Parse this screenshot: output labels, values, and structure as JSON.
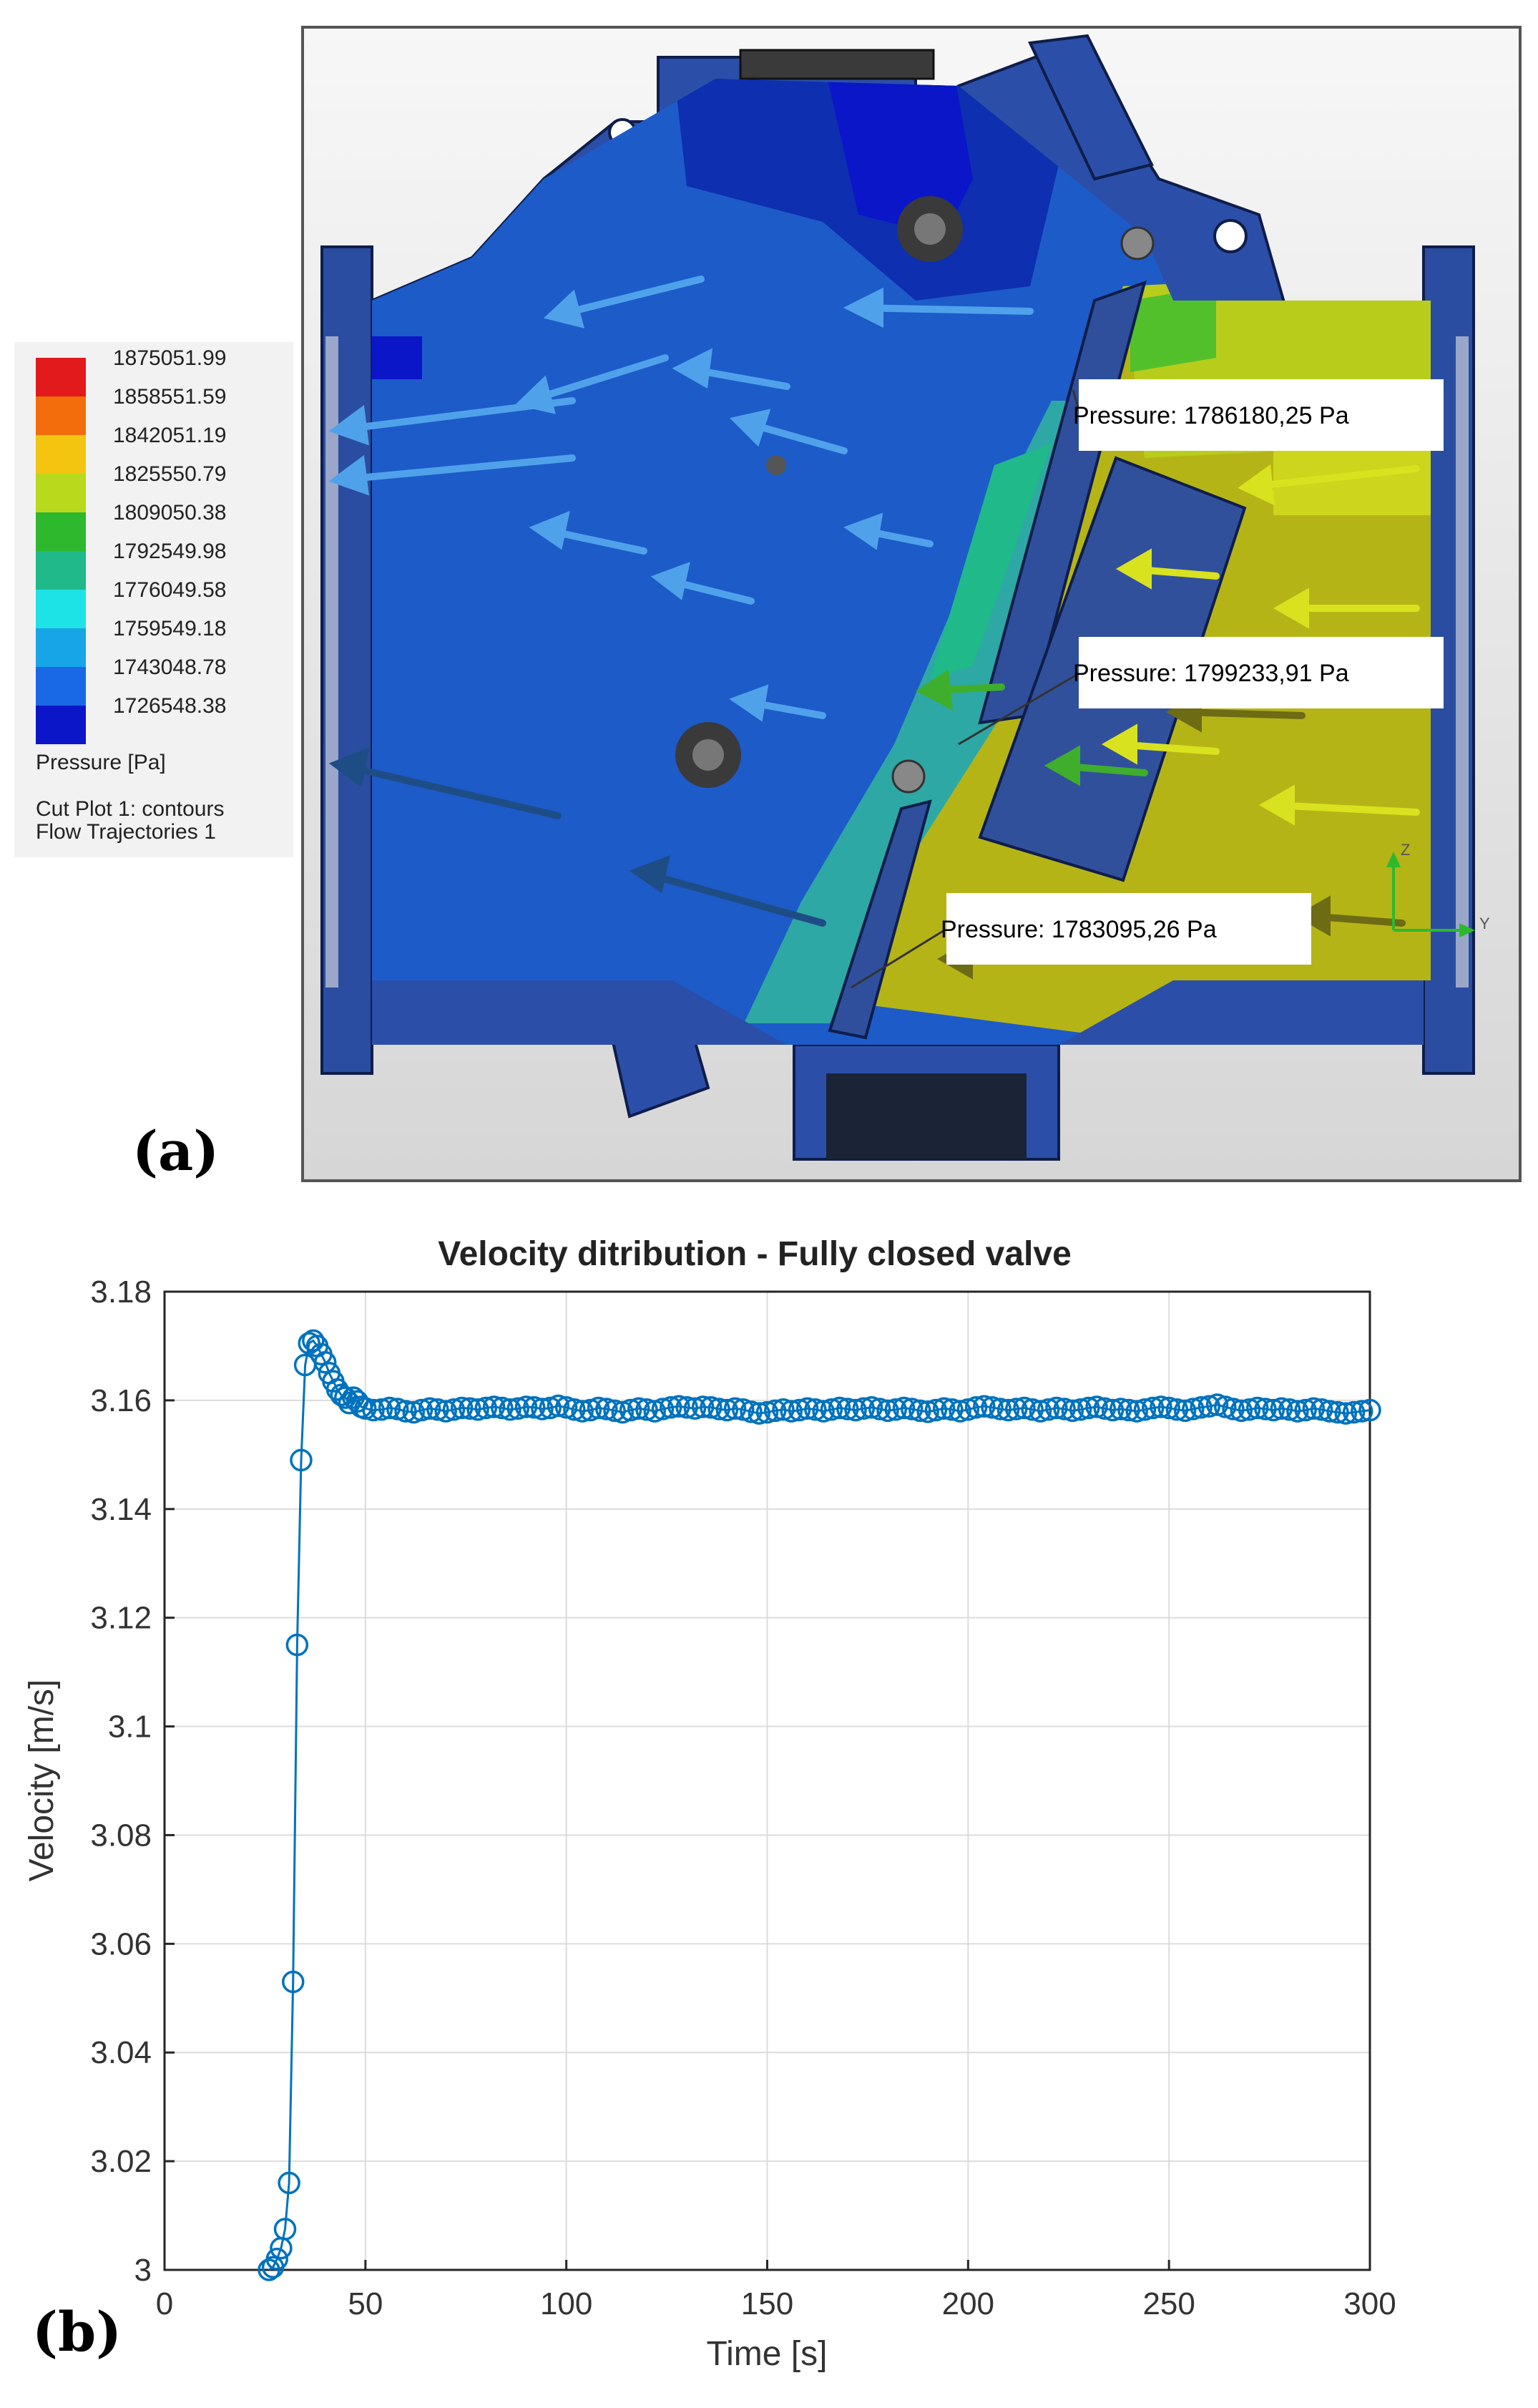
{
  "panel_a": {
    "label": "(a)",
    "legend": {
      "values": [
        "1875051.99",
        "1858551.59",
        "1842051.19",
        "1825550.79",
        "1809050.38",
        "1792549.98",
        "1776049.58",
        "1759549.18",
        "1743048.78",
        "1726548.38"
      ],
      "colors": [
        "#e31a1c",
        "#f46d0c",
        "#f3c511",
        "#b8d91c",
        "#2eb82e",
        "#1fb98a",
        "#1ee3e6",
        "#18a5e8",
        "#1969e6",
        "#0a16c8"
      ],
      "quantity": "Pressure [Pa]",
      "line1": "Cut Plot 1: contours",
      "line2": "Flow Trajectories 1"
    },
    "callouts": [
      "Pressure: 1786180,25 Pa",
      "Pressure: 1799233,91 Pa",
      "Pressure: 1783095,26 Pa"
    ],
    "axis_triad": {
      "z": "Z",
      "y": "Y"
    }
  },
  "panel_b": {
    "label": "(b)"
  },
  "chart_data": {
    "type": "line",
    "title": "Velocity ditribution - Fully closed valve",
    "xlabel": "Time [s]",
    "ylabel": "Velocity [m/s]",
    "xlim": [
      0,
      300
    ],
    "ylim": [
      3,
      3.18
    ],
    "xticks": [
      "0",
      "50",
      "100",
      "150",
      "200",
      "250",
      "300"
    ],
    "yticks": [
      "3",
      "3.02",
      "3.04",
      "3.06",
      "3.08",
      "3.1",
      "3.12",
      "3.14",
      "3.16",
      "3.18"
    ],
    "grid": true,
    "marker": "circle",
    "color": "#0072bd",
    "series": [
      {
        "x": [
          26,
          27,
          28,
          29,
          30,
          31,
          32,
          33,
          34,
          35,
          36,
          37,
          38,
          39,
          40,
          41,
          42,
          43,
          44,
          45,
          46,
          47,
          48,
          49,
          50,
          52,
          54,
          56,
          58,
          60,
          62,
          64,
          66,
          68,
          70,
          72,
          74,
          76,
          78,
          80,
          82,
          84,
          86,
          88,
          90,
          92,
          94,
          96,
          98,
          100,
          102,
          104,
          106,
          108,
          110,
          112,
          114,
          116,
          118,
          120,
          122,
          124,
          126,
          128,
          130,
          132,
          134,
          136,
          138,
          140,
          142,
          144,
          146,
          148,
          150,
          152,
          154,
          156,
          158,
          160,
          162,
          164,
          166,
          168,
          170,
          172,
          174,
          176,
          178,
          180,
          182,
          184,
          186,
          188,
          190,
          192,
          194,
          196,
          198,
          200,
          202,
          204,
          206,
          208,
          210,
          212,
          214,
          216,
          218,
          220,
          222,
          224,
          226,
          228,
          230,
          232,
          234,
          236,
          238,
          240,
          242,
          244,
          246,
          248,
          250,
          252,
          254,
          256,
          258,
          260,
          262,
          264,
          266,
          268,
          270,
          272,
          274,
          276,
          278,
          280,
          282,
          284,
          286,
          288,
          290,
          292,
          294,
          296,
          298,
          300
        ],
        "y": [
          3.0,
          3.0005,
          3.002,
          3.004,
          3.0075,
          3.016,
          3.053,
          3.115,
          3.149,
          3.1665,
          3.1705,
          3.171,
          3.17,
          3.1685,
          3.167,
          3.165,
          3.1635,
          3.162,
          3.161,
          3.1605,
          3.1595,
          3.1605,
          3.1598,
          3.1588,
          3.1585,
          3.1582,
          3.1583,
          3.1586,
          3.1584,
          3.158,
          3.1578,
          3.1582,
          3.1585,
          3.1583,
          3.158,
          3.1583,
          3.1586,
          3.1585,
          3.1583,
          3.1586,
          3.1588,
          3.1586,
          3.1583,
          3.1585,
          3.1588,
          3.1587,
          3.1584,
          3.1586,
          3.159,
          3.1587,
          3.1583,
          3.158,
          3.1582,
          3.1586,
          3.1584,
          3.1581,
          3.1578,
          3.1582,
          3.1585,
          3.1583,
          3.158,
          3.1584,
          3.1587,
          3.1589,
          3.1587,
          3.1585,
          3.1588,
          3.1587,
          3.1584,
          3.1582,
          3.1585,
          3.1583,
          3.1579,
          3.1576,
          3.1578,
          3.1581,
          3.1583,
          3.158,
          3.1582,
          3.1585,
          3.1583,
          3.158,
          3.1583,
          3.1586,
          3.1584,
          3.1582,
          3.1585,
          3.1587,
          3.1584,
          3.1581,
          3.1583,
          3.1586,
          3.1584,
          3.1581,
          3.1579,
          3.1582,
          3.1585,
          3.1583,
          3.158,
          3.1583,
          3.1587,
          3.1589,
          3.1587,
          3.1584,
          3.1582,
          3.1584,
          3.1586,
          3.1583,
          3.158,
          3.1583,
          3.1586,
          3.1584,
          3.1581,
          3.1583,
          3.1586,
          3.1588,
          3.1585,
          3.1582,
          3.1584,
          3.1582,
          3.158,
          3.1583,
          3.1586,
          3.1588,
          3.1586,
          3.1583,
          3.1581,
          3.1584,
          3.1587,
          3.1589,
          3.1592,
          3.1588,
          3.1584,
          3.1581,
          3.1583,
          3.1586,
          3.1584,
          3.1582,
          3.1585,
          3.1583,
          3.158,
          3.1582,
          3.1585,
          3.1583,
          3.158,
          3.1578,
          3.1576,
          3.1578,
          3.158,
          3.1582
        ]
      }
    ]
  }
}
